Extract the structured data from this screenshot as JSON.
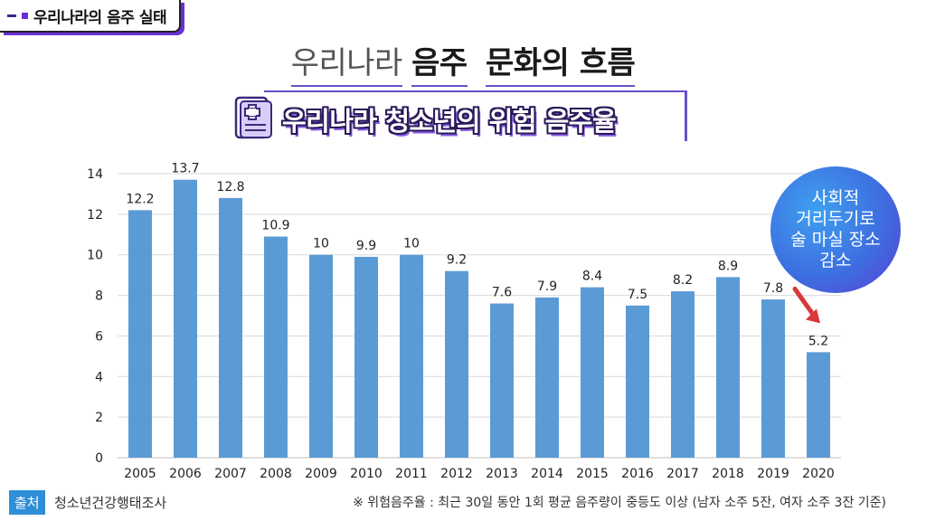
{
  "header": {
    "corner_label": "우리나라의 음주 실태"
  },
  "title": {
    "part1": "우리나라",
    "part2": "음주",
    "part3": "문화의 흐름"
  },
  "subtitle": "우리나라 청소년의 위험 음주율",
  "chart_data": {
    "type": "bar",
    "categories": [
      "2005",
      "2006",
      "2007",
      "2008",
      "2009",
      "2010",
      "2011",
      "2012",
      "2013",
      "2014",
      "2015",
      "2016",
      "2017",
      "2018",
      "2019",
      "2020"
    ],
    "values": [
      12.2,
      13.7,
      12.8,
      10.9,
      10,
      9.9,
      10,
      9.2,
      7.6,
      7.9,
      8.4,
      7.5,
      8.2,
      8.9,
      7.8,
      5.2
    ],
    "data_labels": [
      "12.2",
      "13.7",
      "12.8",
      "10.9",
      "10",
      "9.9",
      "10",
      "9.2",
      "7.6",
      "7.9",
      "8.4",
      "7.5",
      "8.2",
      "8.9",
      "7.8",
      "5.2"
    ],
    "ylim": [
      0,
      14
    ],
    "yticks": [
      0,
      2,
      4,
      6,
      8,
      10,
      12,
      14
    ],
    "grid": true,
    "bar_color": "#5b9bd5",
    "annotation": {
      "lines": [
        "사회적",
        "거리두기로",
        "술 마실 장소",
        "감소"
      ],
      "target_category": "2020",
      "arrow_color": "#d9383a"
    }
  },
  "footer": {
    "source_tag": "출처",
    "source": "청소년건강행태조사",
    "note": "※ 위험음주율 : 최근 30일 동안 1회 평균 음주량이 중등도 이상 (남자 소주 5잔, 여자 소주 3잔 기준)"
  }
}
